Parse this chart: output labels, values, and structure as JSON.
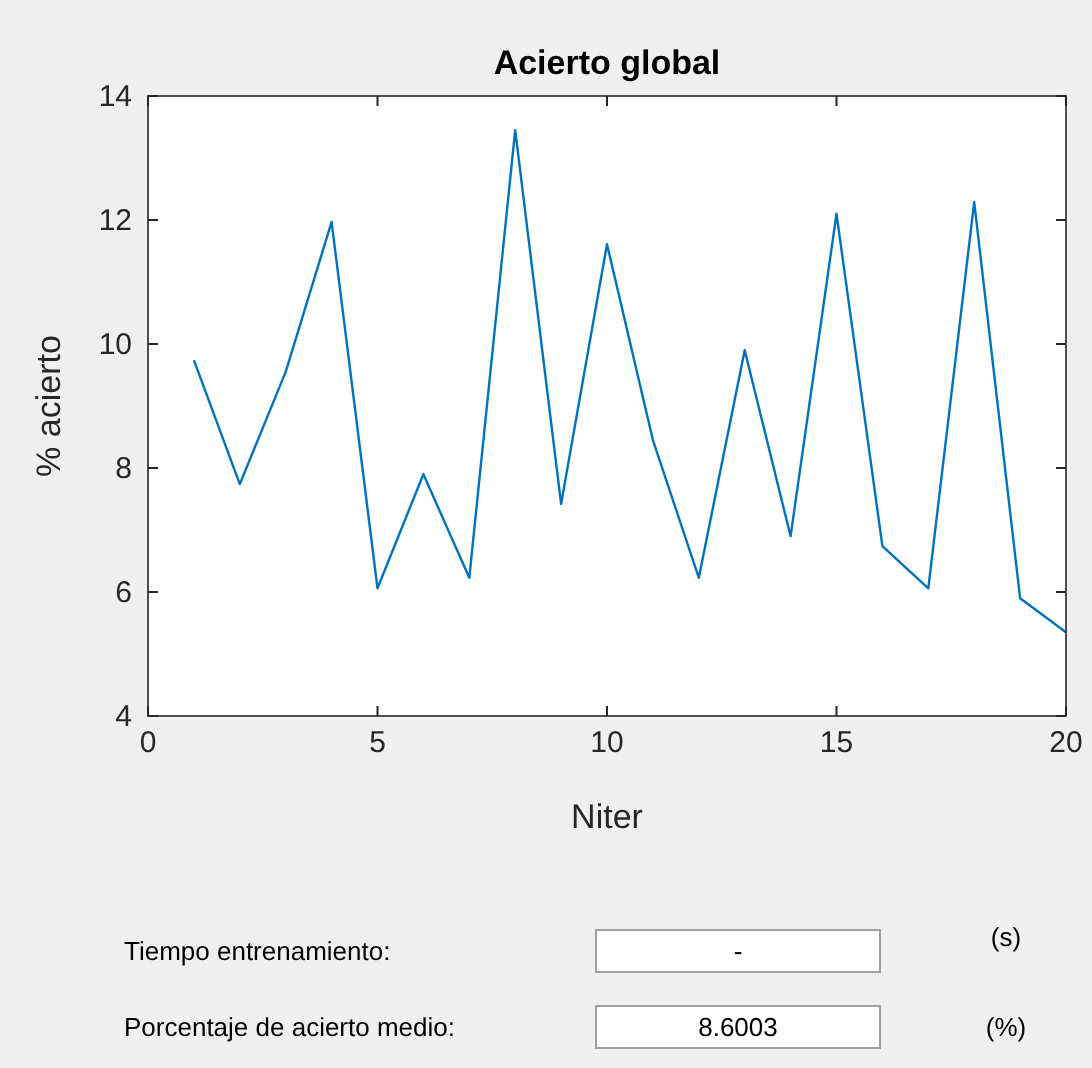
{
  "chart_data": {
    "type": "line",
    "title": "Acierto global",
    "xlabel": "Niter",
    "ylabel": "% acierto",
    "x": [
      1,
      2,
      3,
      4,
      5,
      6,
      7,
      8,
      9,
      10,
      11,
      12,
      13,
      14,
      15,
      16,
      17,
      18,
      19,
      20
    ],
    "series": [
      {
        "color": "#0072bd",
        "values": [
          9.74,
          7.74,
          9.55,
          11.97,
          6.06,
          7.9,
          6.23,
          13.45,
          7.42,
          11.61,
          8.45,
          6.23,
          9.9,
          6.9,
          12.1,
          6.74,
          6.06,
          12.29,
          5.9,
          5.35
        ]
      }
    ],
    "xlim": [
      0,
      20
    ],
    "xticks": [
      0,
      5,
      10,
      15,
      20
    ],
    "ylim": [
      4,
      14
    ],
    "yticks": [
      4,
      6,
      8,
      10,
      12,
      14
    ],
    "grid": false,
    "marker": "none",
    "line_style": "solid",
    "annotations": [
      "Tiempo entrenamiento:",
      "-",
      "(s)",
      "Porcentaje de acierto medio:",
      "8.6003",
      "(%)"
    ]
  }
}
